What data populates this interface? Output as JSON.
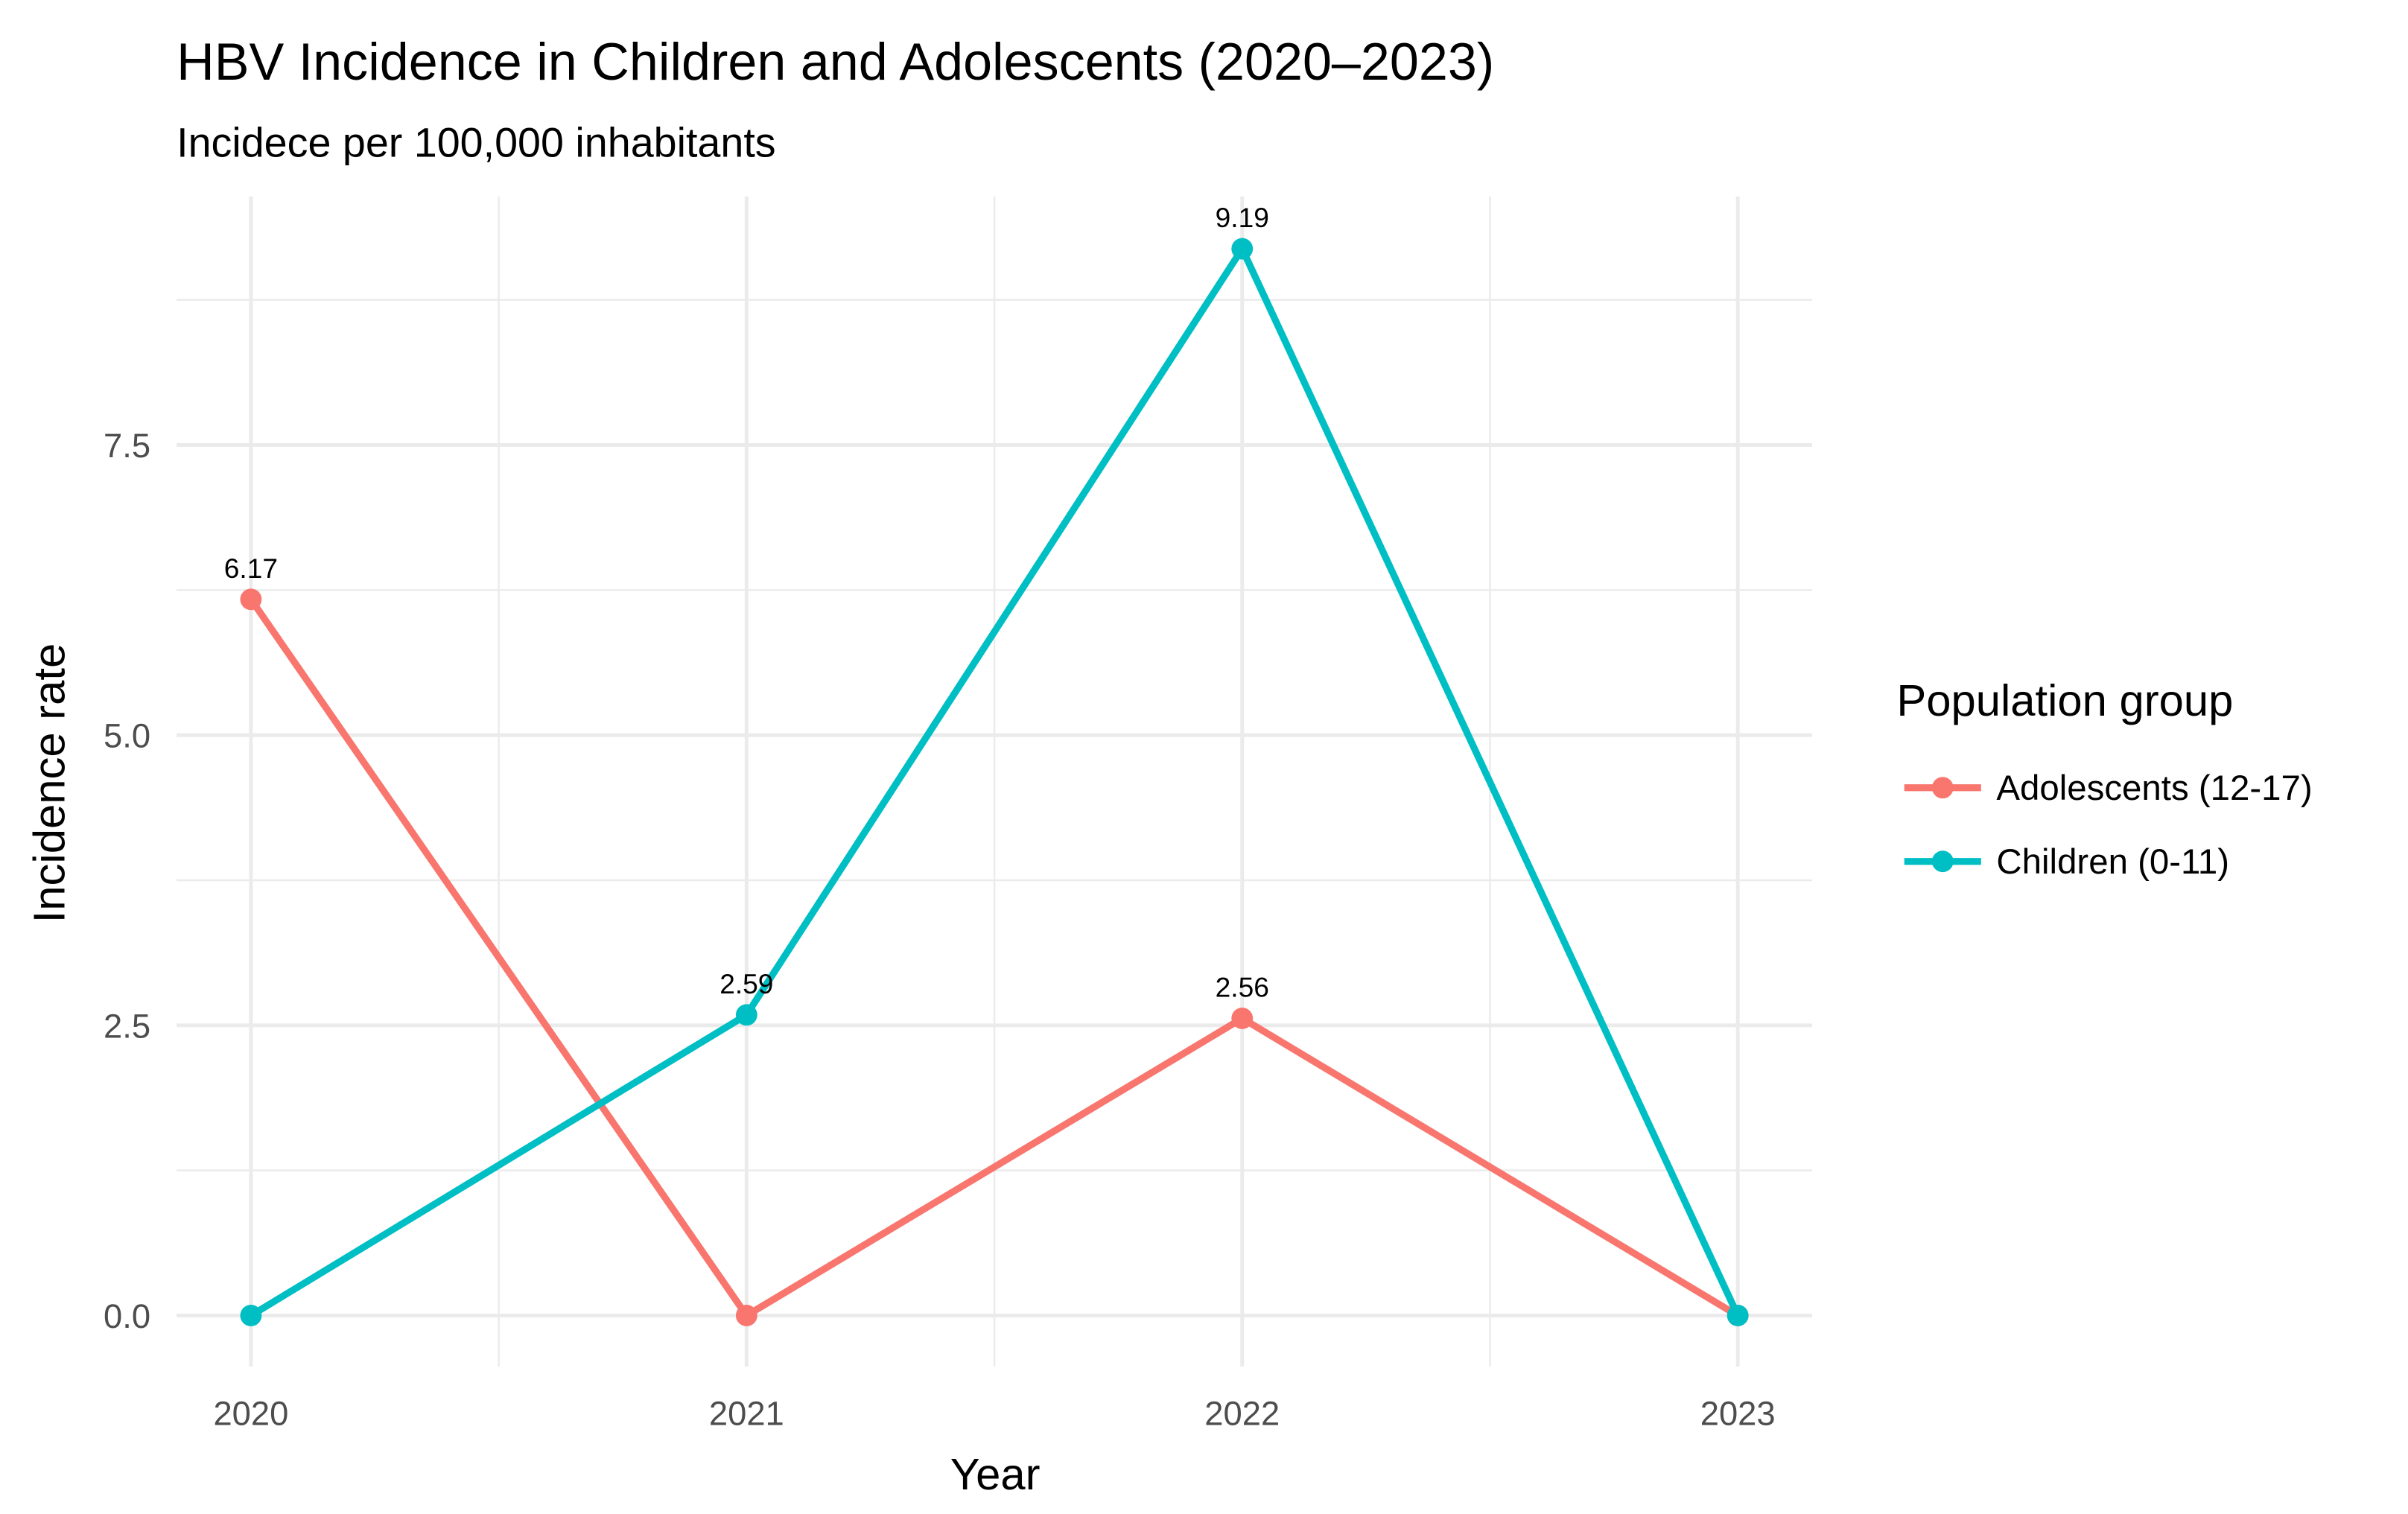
{
  "chart_data": {
    "type": "line",
    "title": "HBV Incidence in Children and Adolescents (2020–2023)",
    "subtitle": "Incidece per 100,000 inhabitants",
    "x_label": "Year",
    "y_label": "Incidence rate",
    "x": [
      2020,
      2021,
      2022,
      2023
    ],
    "series": [
      {
        "name": "Adolescents (12-17)",
        "color": "#F8766D",
        "values": [
          6.17,
          0,
          2.56,
          0
        ]
      },
      {
        "name": "Children (0-11)",
        "color": "#00BFC4",
        "values": [
          0,
          2.59,
          9.19,
          0
        ]
      }
    ],
    "xlim": [
      2019.85,
      2023.15
    ],
    "xticks": [
      2020,
      2021,
      2022,
      2023
    ],
    "ylim": [
      -0.44,
      9.64
    ],
    "yticks": [
      {
        "value": 0,
        "label": "0.0"
      },
      2.5,
      {
        "value": 5,
        "label": "5.0"
      },
      7.5
    ],
    "grid": true,
    "legend_title": "Population group",
    "legend_position": "right"
  }
}
